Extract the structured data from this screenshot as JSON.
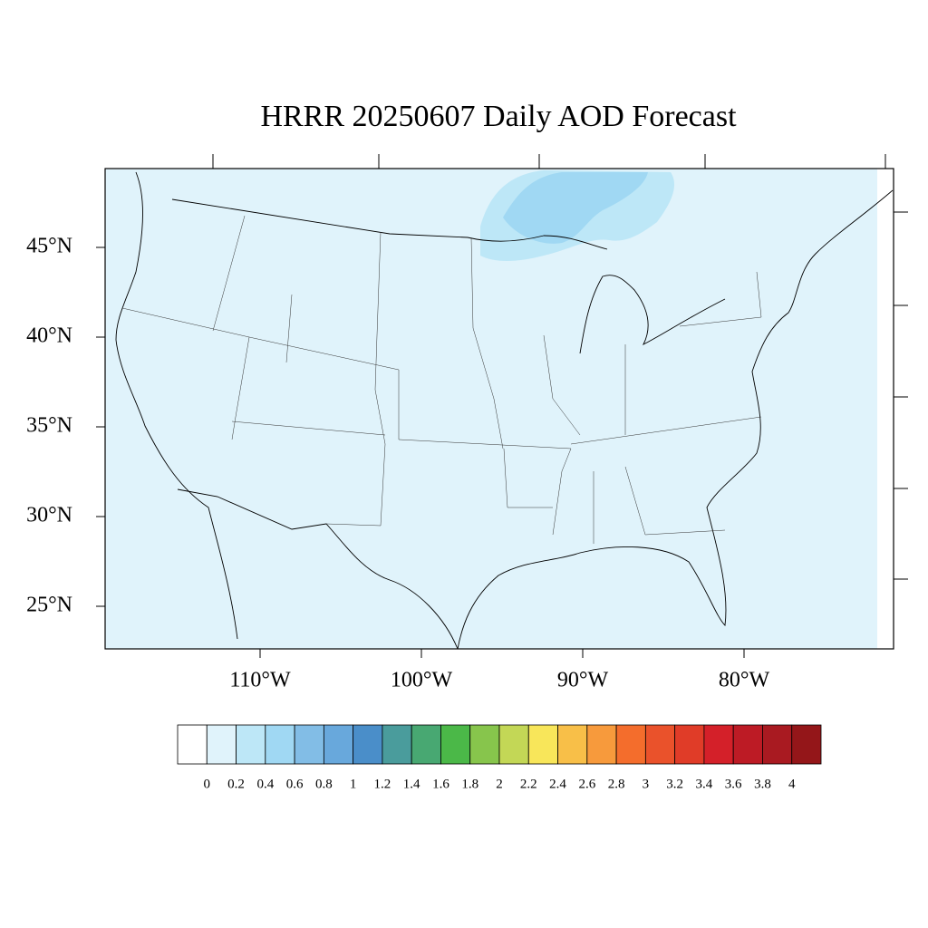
{
  "title": "HRRR 20250607 Daily AOD Forecast",
  "lat_labels": [
    "45°N",
    "40°N",
    "35°N",
    "30°N",
    "25°N"
  ],
  "lon_labels": [
    "110°W",
    "100°W",
    "90°W",
    "80°W"
  ],
  "colorbar": {
    "colors": [
      "#ffffff",
      "#e0f3fb",
      "#bde7f7",
      "#a0d8f3",
      "#82bde6",
      "#68a8dc",
      "#4a8ec9",
      "#4a9c9c",
      "#48a872",
      "#4bb848",
      "#87c54c",
      "#c3d756",
      "#f8e65a",
      "#f8bf48",
      "#f79a3c",
      "#f46d2c",
      "#ea522b",
      "#e03c28",
      "#d42029",
      "#bd1b25",
      "#a91a21",
      "#941619"
    ],
    "labels": [
      "0",
      "0.2",
      "0.4",
      "0.6",
      "0.8",
      "1",
      "1.2",
      "1.4",
      "1.6",
      "1.8",
      "2",
      "2.2",
      "2.4",
      "2.6",
      "2.8",
      "3",
      "3.2",
      "3.4",
      "3.6",
      "3.8",
      "4"
    ]
  }
}
